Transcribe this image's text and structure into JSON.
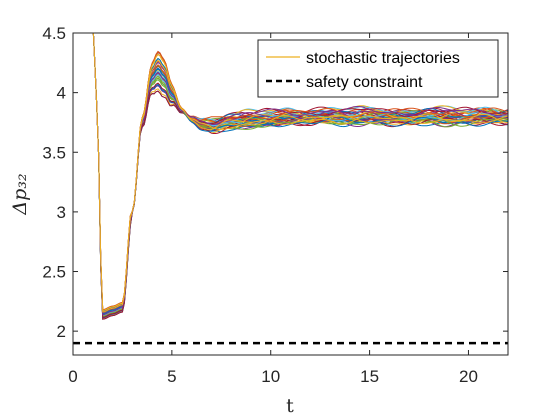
{
  "chart_data": {
    "type": "line",
    "title": "",
    "xlabel": "t",
    "ylabel": "Δp₃₂",
    "xlim": [
      0,
      22
    ],
    "ylim": [
      1.8,
      4.5
    ],
    "xticks": [
      0,
      5,
      10,
      15,
      20
    ],
    "yticks": [
      2,
      2.5,
      3,
      3.5,
      4,
      4.5
    ],
    "xtick_labels": [
      "0",
      "5",
      "10",
      "15",
      "20"
    ],
    "ytick_labels": [
      "2",
      "2.5",
      "3",
      "3.5",
      "4",
      "4.5"
    ],
    "grid": false,
    "legend_position": "top-right",
    "series": [
      {
        "name": "stochastic trajectories",
        "style": "solid",
        "color": "#EDB120",
        "x": [
          0,
          0.5,
          1,
          1.2,
          1.5,
          2,
          2.5,
          3,
          3.5,
          4,
          4.3,
          4.6,
          5,
          5.5,
          6,
          6.5,
          7,
          8,
          9,
          10,
          11,
          12,
          13,
          14,
          15,
          16,
          17,
          18,
          19,
          20,
          21,
          22
        ],
        "y": [
          4.9,
          4.75,
          4.6,
          3.9,
          2.14,
          2.17,
          2.2,
          3.0,
          3.75,
          4.12,
          4.18,
          4.12,
          3.98,
          3.85,
          3.78,
          3.74,
          3.73,
          3.76,
          3.78,
          3.79,
          3.8,
          3.8,
          3.81,
          3.8,
          3.81,
          3.8,
          3.8,
          3.81,
          3.8,
          3.8,
          3.81,
          3.8
        ],
        "ensemble_spread_at_peak": [
          3.95,
          4.33
        ],
        "ensemble_spread_steady": [
          3.7,
          3.87
        ]
      },
      {
        "name": "safety constraint",
        "style": "dashed",
        "color": "#000000",
        "x": [
          0,
          22
        ],
        "y": [
          1.9,
          1.9
        ]
      }
    ],
    "ensemble_colors": [
      "#0072BD",
      "#D95319",
      "#EDB120",
      "#7E2F8E",
      "#77AC30",
      "#4DBEEE",
      "#A2142F"
    ]
  }
}
